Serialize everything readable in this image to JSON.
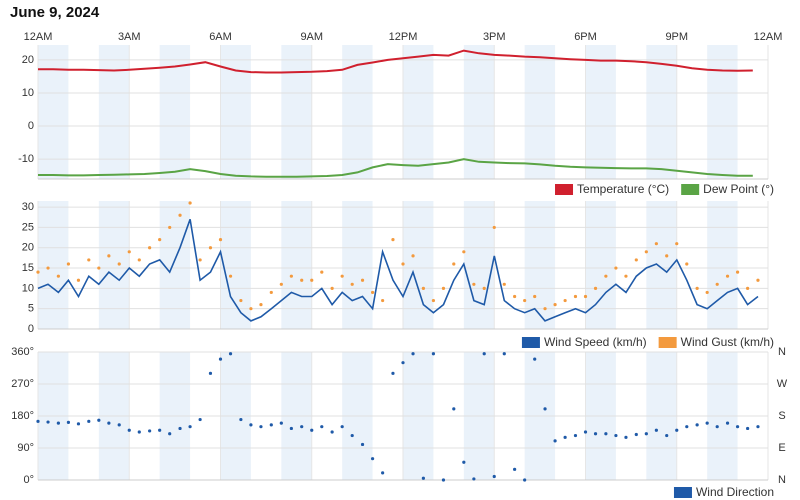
{
  "title": "June 9, 2024",
  "chart_data": [
    {
      "type": "line",
      "xlim": [
        0,
        24
      ],
      "xticks": [
        {
          "value": 0,
          "label": "12AM"
        },
        {
          "value": 3,
          "label": "3AM"
        },
        {
          "value": 6,
          "label": "6AM"
        },
        {
          "value": 9,
          "label": "9AM"
        },
        {
          "value": 12,
          "label": "12PM"
        },
        {
          "value": 15,
          "label": "3PM"
        },
        {
          "value": 18,
          "label": "6PM"
        },
        {
          "value": 21,
          "label": "9PM"
        },
        {
          "value": 24,
          "label": "12AM"
        }
      ],
      "ylim": [
        -16,
        24.5
      ],
      "yticks": [
        -10,
        0,
        10,
        20
      ],
      "x": [
        0,
        0.5,
        1,
        1.5,
        2,
        2.5,
        3,
        3.5,
        4,
        4.5,
        5,
        5.5,
        6,
        6.5,
        7,
        7.5,
        8,
        8.5,
        9,
        9.5,
        10,
        10.5,
        11,
        11.5,
        12,
        12.5,
        13,
        13.5,
        14,
        14.5,
        15,
        15.5,
        16,
        16.5,
        17,
        17.5,
        18,
        18.5,
        19,
        19.5,
        20,
        20.5,
        21,
        21.5,
        22,
        22.5,
        23,
        23.5
      ],
      "series": [
        {
          "name": "Temperature (°C)",
          "color": "#d0202e",
          "values": [
            17.2,
            17.2,
            17.0,
            17.0,
            16.9,
            16.8,
            17.0,
            17.3,
            17.6,
            18.0,
            18.6,
            19.3,
            18.0,
            16.8,
            16.3,
            16.2,
            16.2,
            16.3,
            16.4,
            16.6,
            17.0,
            18.5,
            19.2,
            20.0,
            20.5,
            21.0,
            21.5,
            21.3,
            22.8,
            22.0,
            21.5,
            21.3,
            21.0,
            20.8,
            20.5,
            20.2,
            20.0,
            19.8,
            19.8,
            19.6,
            19.3,
            18.8,
            18.2,
            17.5,
            17.0,
            16.8,
            16.7,
            16.8
          ]
        },
        {
          "name": "Dew Point (°)",
          "color": "#5aa445",
          "values": [
            -14.8,
            -14.8,
            -14.9,
            -14.9,
            -14.8,
            -14.7,
            -14.6,
            -14.5,
            -14.2,
            -13.8,
            -13.0,
            -13.6,
            -14.5,
            -15.0,
            -15.2,
            -15.3,
            -15.3,
            -15.3,
            -15.2,
            -15.1,
            -14.8,
            -14.0,
            -12.5,
            -11.5,
            -11.8,
            -12.0,
            -11.5,
            -11.0,
            -10.0,
            -10.8,
            -11.0,
            -11.2,
            -11.3,
            -11.6,
            -12.0,
            -12.3,
            -12.5,
            -12.6,
            -12.7,
            -12.8,
            -12.8,
            -13.0,
            -13.5,
            -14.0,
            -14.5,
            -14.8,
            -15.0,
            -15.0
          ]
        }
      ]
    },
    {
      "type": "line",
      "xlim": [
        0,
        24
      ],
      "ylim": [
        0,
        31.5
      ],
      "yticks": [
        0,
        5,
        10,
        15,
        20,
        25,
        30
      ],
      "x": [
        0,
        0.33,
        0.67,
        1,
        1.33,
        1.67,
        2,
        2.33,
        2.67,
        3,
        3.33,
        3.67,
        4,
        4.33,
        4.67,
        5,
        5.33,
        5.67,
        6,
        6.33,
        6.67,
        7,
        7.33,
        7.67,
        8,
        8.33,
        8.67,
        9,
        9.33,
        9.67,
        10,
        10.33,
        10.67,
        11,
        11.33,
        11.67,
        12,
        12.33,
        12.67,
        13,
        13.33,
        13.67,
        14,
        14.33,
        14.67,
        15,
        15.33,
        15.67,
        16,
        16.33,
        16.67,
        17,
        17.33,
        17.67,
        18,
        18.33,
        18.67,
        19,
        19.33,
        19.67,
        20,
        20.33,
        20.67,
        21,
        21.33,
        21.67,
        22,
        22.33,
        22.67,
        23,
        23.33,
        23.67
      ],
      "series": [
        {
          "name": "Wind Speed (km/h)",
          "color": "#1f5aa8",
          "values": [
            10,
            11,
            9,
            12,
            8,
            13,
            11,
            14,
            12,
            15,
            13,
            16,
            17,
            14,
            20,
            27,
            12,
            14,
            19,
            8,
            4,
            2,
            3,
            5,
            7,
            9,
            8,
            8,
            10,
            6,
            9,
            7,
            8,
            5,
            19,
            12,
            8,
            14,
            6,
            4,
            6,
            12,
            16,
            7,
            6,
            18,
            7,
            5,
            4,
            5,
            2,
            3,
            4,
            5,
            4,
            6,
            9,
            11,
            9,
            13,
            15,
            16,
            14,
            17,
            12,
            6,
            5,
            7,
            9,
            10,
            6,
            8
          ]
        },
        {
          "name": "Wind Gust (km/h)",
          "color": "#f39a3e",
          "mode": "markers",
          "values": [
            14,
            15,
            13,
            16,
            12,
            17,
            15,
            18,
            16,
            19,
            17,
            20,
            22,
            25,
            28,
            31,
            17,
            20,
            22,
            13,
            7,
            5,
            6,
            9,
            11,
            13,
            12,
            12,
            14,
            10,
            13,
            11,
            12,
            9,
            7,
            22,
            16,
            18,
            10,
            7,
            10,
            16,
            19,
            11,
            10,
            25,
            11,
            8,
            7,
            8,
            5,
            6,
            7,
            8,
            8,
            10,
            13,
            15,
            13,
            17,
            19,
            21,
            18,
            21,
            16,
            10,
            9,
            11,
            13,
            14,
            10,
            12
          ]
        }
      ]
    },
    {
      "type": "scatter",
      "xlim": [
        0,
        24
      ],
      "ylim": [
        0,
        360
      ],
      "yticks": [
        {
          "value": 0,
          "label": "0°"
        },
        {
          "value": 90,
          "label": "90°"
        },
        {
          "value": 180,
          "label": "180°"
        },
        {
          "value": 270,
          "label": "270°"
        },
        {
          "value": 360,
          "label": "360°"
        }
      ],
      "y2lim": [
        0,
        360
      ],
      "y2ticks": [
        {
          "value": 0,
          "label": "N"
        },
        {
          "value": 90,
          "label": "E"
        },
        {
          "value": 180,
          "label": "S"
        },
        {
          "value": 270,
          "label": "W"
        },
        {
          "value": 360,
          "label": "N"
        }
      ],
      "x": [
        0,
        0.33,
        0.67,
        1,
        1.33,
        1.67,
        2,
        2.33,
        2.67,
        3,
        3.33,
        3.67,
        4,
        4.33,
        4.67,
        5,
        5.33,
        5.67,
        6,
        6.33,
        6.67,
        7,
        7.33,
        7.67,
        8,
        8.33,
        8.67,
        9,
        9.33,
        9.67,
        10,
        10.33,
        10.67,
        11,
        11.33,
        11.67,
        12,
        12.33,
        12.67,
        13,
        13.33,
        13.67,
        14,
        14.33,
        14.67,
        15,
        15.33,
        15.67,
        16,
        16.33,
        16.67,
        17,
        17.33,
        17.67,
        18,
        18.33,
        18.67,
        19,
        19.33,
        19.67,
        20,
        20.33,
        20.67,
        21,
        21.33,
        21.67,
        22,
        22.33,
        22.67,
        23,
        23.33,
        23.67
      ],
      "series": [
        {
          "name": "Wind Direction",
          "color": "#1f5aa8",
          "values": [
            165,
            163,
            160,
            162,
            158,
            165,
            168,
            160,
            155,
            140,
            135,
            138,
            140,
            130,
            145,
            150,
            170,
            300,
            340,
            355,
            170,
            155,
            150,
            155,
            160,
            145,
            150,
            140,
            150,
            135,
            150,
            125,
            100,
            60,
            20,
            300,
            330,
            355,
            5,
            355,
            0,
            200,
            50,
            3,
            355,
            10,
            355,
            30,
            0,
            340,
            200,
            110,
            120,
            125,
            135,
            130,
            130,
            125,
            120,
            128,
            130,
            140,
            125,
            140,
            150,
            155,
            160,
            150,
            160,
            150,
            145,
            150
          ]
        }
      ]
    }
  ]
}
